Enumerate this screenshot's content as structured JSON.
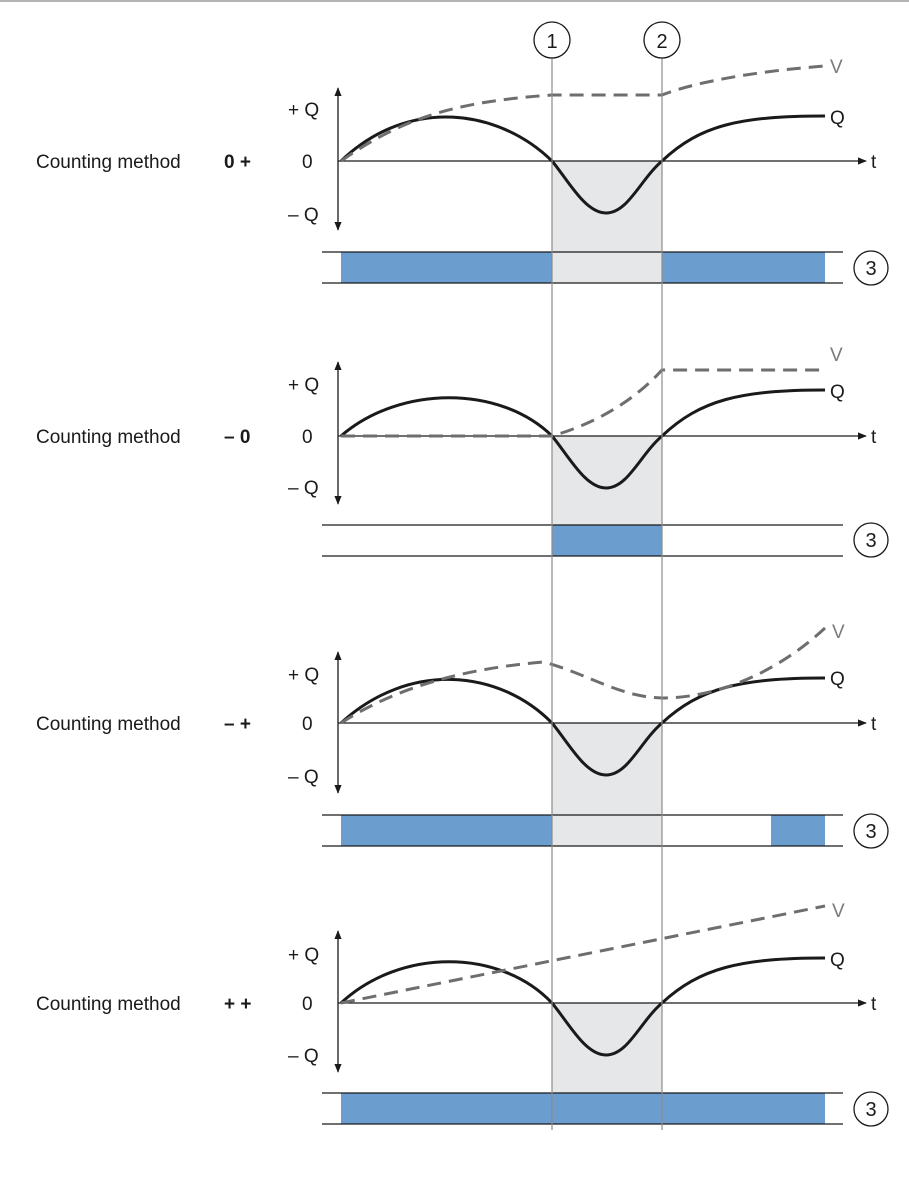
{
  "markers": [
    {
      "number": "1"
    },
    {
      "number": "2"
    },
    {
      "number": "3"
    }
  ],
  "axis_labels": {
    "plus_q": "+ Q",
    "zero": "0",
    "minus_q": "– Q",
    "t": "t"
  },
  "curve_labels": {
    "v": "V",
    "q": "Q"
  },
  "colors": {
    "indicator_fill": "#6b9ecf",
    "highlight_fill": "#e6e7e9",
    "q_curve": "#1a1a1a",
    "v_curve": "#6e6e6e",
    "guide_line": "#8c8c8c"
  },
  "panels": [
    {
      "method_label": "Counting method",
      "method_sign": "0 +",
      "v_shape": "ramp-hold-ramp",
      "indicator": [
        {
          "from": "start",
          "to": "1"
        },
        {
          "from": "2",
          "to": "end"
        }
      ]
    },
    {
      "method_label": "Counting method",
      "method_sign": "– 0",
      "v_shape": "flat-ramp-hold",
      "indicator": [
        {
          "from": "1",
          "to": "2"
        }
      ]
    },
    {
      "method_label": "Counting method",
      "method_sign": "– +",
      "v_shape": "ramp-dip-ramp",
      "indicator": [
        {
          "from": "start",
          "to": "1"
        },
        {
          "from": "late",
          "to": "end"
        }
      ]
    },
    {
      "method_label": "Counting method",
      "method_sign": "+ +",
      "v_shape": "linear-ramp",
      "indicator": [
        {
          "from": "start",
          "to": "end"
        }
      ]
    }
  ]
}
